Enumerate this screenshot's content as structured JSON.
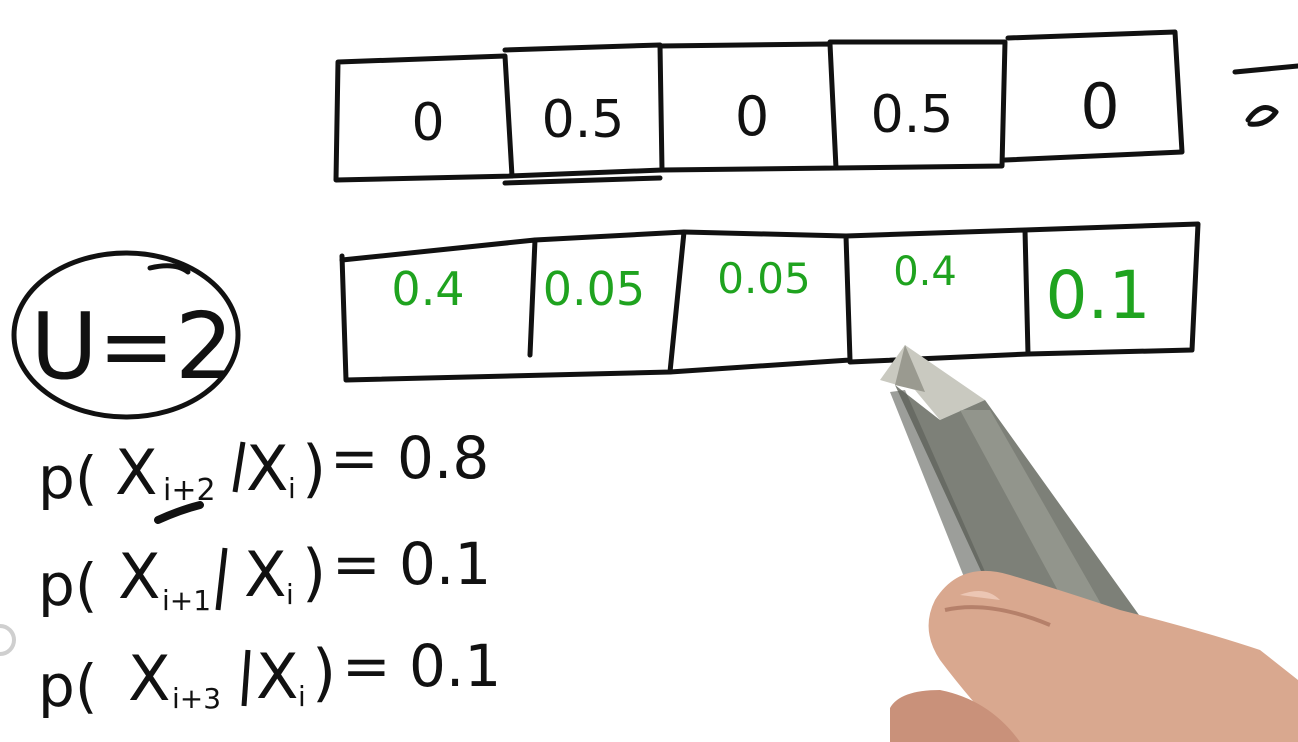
{
  "prior": {
    "cells": [
      "0",
      "0.5",
      "0",
      "0.5",
      "0"
    ],
    "values": [
      0,
      0.5,
      0,
      0.5,
      0
    ]
  },
  "posterior": {
    "cells": [
      "0.4",
      "0.05",
      "0.05",
      "0.4",
      "0.1"
    ],
    "values": [
      0.4,
      0.05,
      0.05,
      0.4,
      0.1
    ]
  },
  "motion": {
    "label": "U=2",
    "equations": [
      {
        "left": "p(",
        "var": "X",
        "sub": "i+2",
        "cond": "X",
        "cond_sub": "i",
        "value": "= 0.8"
      },
      {
        "left": "p(",
        "var": "X",
        "sub": "i+1",
        "cond": "X",
        "cond_sub": "i",
        "value": "= 0.1"
      },
      {
        "left": "p(",
        "var": "X",
        "sub": "i+3",
        "cond": "X",
        "cond_sub": "i",
        "value": "= 0.1"
      }
    ]
  },
  "colors": {
    "ink": "#111111",
    "green_ink": "#1fa31f",
    "background": "#ffffff",
    "pen_body": "#7d8078",
    "skin": "#d9a88f"
  },
  "icons": [
    "pen-icon",
    "hand-icon"
  ]
}
